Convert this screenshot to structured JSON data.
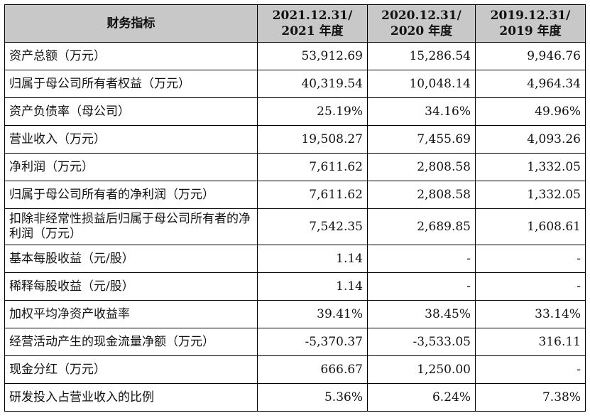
{
  "header": {
    "label": "财务指标",
    "periods": [
      {
        "line1": "2021.12.31/",
        "line2": "2021 年度"
      },
      {
        "line1": "2020.12.31/",
        "line2": "2020 年度"
      },
      {
        "line1": "2019.12.31/",
        "line2": "2019 年度"
      }
    ]
  },
  "rows": [
    {
      "label": "资产总额（万元）",
      "values": [
        "53,912.69",
        "15,286.54",
        "9,946.76"
      ]
    },
    {
      "label": "归属于母公司所有者权益（万元）",
      "values": [
        "40,319.54",
        "10,048.14",
        "4,964.34"
      ]
    },
    {
      "label": "资产负债率（母公司）",
      "values": [
        "25.19%",
        "34.16%",
        "49.96%"
      ]
    },
    {
      "label": "营业收入（万元）",
      "values": [
        "19,508.27",
        "7,455.69",
        "4,093.26"
      ]
    },
    {
      "label": "净利润（万元）",
      "values": [
        "7,611.62",
        "2,808.58",
        "1,332.05"
      ]
    },
    {
      "label": "归属于母公司所有者的净利润（万元）",
      "values": [
        "7,611.62",
        "2,808.58",
        "1,332.05"
      ]
    },
    {
      "label": "扣除非经常性损益后归属于母公司所有者的净利润（万元）",
      "values": [
        "7,542.35",
        "2,689.85",
        "1,608.61"
      ]
    },
    {
      "label": "基本每股收益（元/股）",
      "values": [
        "1.14",
        "-",
        "-"
      ]
    },
    {
      "label": "稀释每股收益（元/股）",
      "values": [
        "1.14",
        "-",
        "-"
      ]
    },
    {
      "label": "加权平均净资产收益率",
      "values": [
        "39.41%",
        "38.45%",
        "33.14%"
      ]
    },
    {
      "label": "经营活动产生的现金流量净额（万元）",
      "values": [
        "-5,370.37",
        "-3,533.05",
        "316.11"
      ]
    },
    {
      "label": "现金分红（万元）",
      "values": [
        "666.67",
        "1,250.00",
        "-"
      ]
    },
    {
      "label": "研发投入占营业收入的比例",
      "values": [
        "5.36%",
        "6.24%",
        "7.38%"
      ]
    }
  ]
}
